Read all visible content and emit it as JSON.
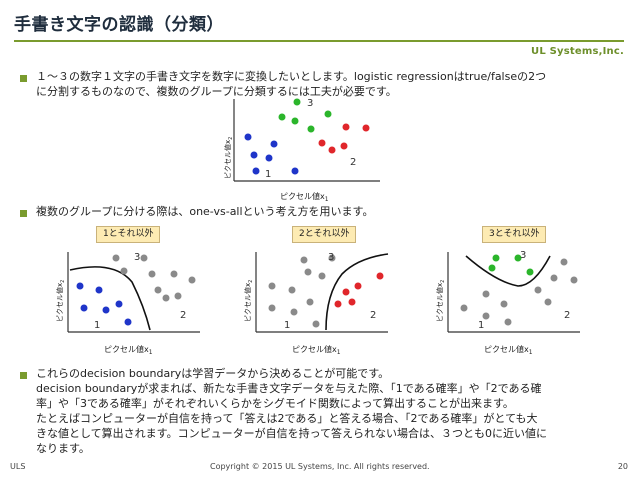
{
  "slide": {
    "title": "手書き文字の認識（分類）",
    "logo": "UL Systems,Inc.",
    "bullets": [
      {
        "lines": [
          "１～３の数字１文字の手書き文字を数字に変換したいとします。logistic regressionはtrue/falseの2つ",
          "に分割するものなので、複数のグループに分類するには工夫が必要です。"
        ]
      },
      {
        "lines": [
          "複数のグループに分ける際は、one-vs-allという考え方を用います。"
        ]
      },
      {
        "lines": [
          "これらのdecision boundaryは学習データから決めることが可能です。",
          "decision boundaryが求まれば、新たな手書き文字データを与えた際、「1である確率」や「2である確",
          "率」や「3である確率」がそれぞれいくらかをシグモイド関数によって算出することが出来ます。",
          "たとえばコンピューターが自信を持って「答えは2である」と答える場合、「2である確率」がとても大",
          "きな値として算出されます。コンピューターが自信を持って答えられない場合は、３つとも0に近い値に",
          "なります。"
        ]
      }
    ],
    "axis_x_label": "ピクセル値x",
    "axis_y_label": "ピクセル値x",
    "class_labels": [
      "1",
      "2",
      "3"
    ],
    "tags": [
      "1とそれ以外",
      "2とそれ以外",
      "3とそれ以外"
    ],
    "footer_left": "ULS",
    "footer_center": "Copyright © 2015 UL Systems, Inc.  All rights reserved.",
    "footer_right": "20"
  },
  "colors": {
    "accent": "#7a9b2e",
    "class1": "#1f35c9",
    "class2": "#e0262b",
    "class3": "#2bb52b",
    "other": "#8a8a8a",
    "tag_bg": "#fdebb3"
  }
}
